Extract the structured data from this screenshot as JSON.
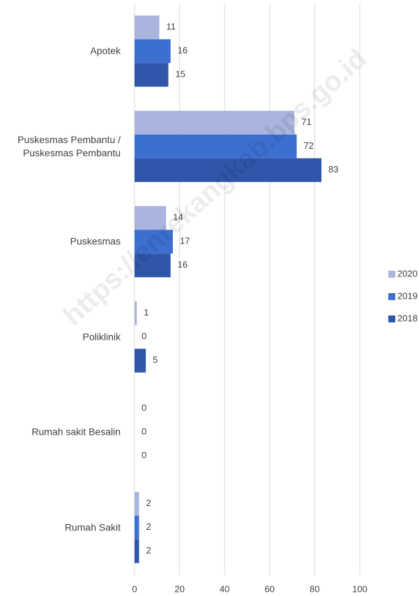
{
  "chart_data": {
    "type": "bar",
    "orientation": "horizontal",
    "categories": [
      "Apotek",
      "Puskesmas Pembantu / Puskesmas Pembantu",
      "Puskesmas",
      "Poliklinik",
      "Rumah sakit Besalin",
      "Rumah Sakit"
    ],
    "series": [
      {
        "name": "2020",
        "color": "#a9b5df",
        "values": [
          11,
          71,
          14,
          1,
          0,
          2
        ]
      },
      {
        "name": "2019",
        "color": "#3d6fd1",
        "values": [
          16,
          72,
          17,
          0,
          0,
          2
        ]
      },
      {
        "name": "2018",
        "color": "#2f56a9",
        "values": [
          15,
          83,
          16,
          5,
          0,
          2
        ]
      }
    ],
    "xlim": [
      0,
      100
    ],
    "xticks": [
      0,
      20,
      40,
      60,
      80,
      100
    ],
    "grid": true,
    "legend": "right",
    "watermark": "https://enrekangkab.bps.go.id"
  }
}
